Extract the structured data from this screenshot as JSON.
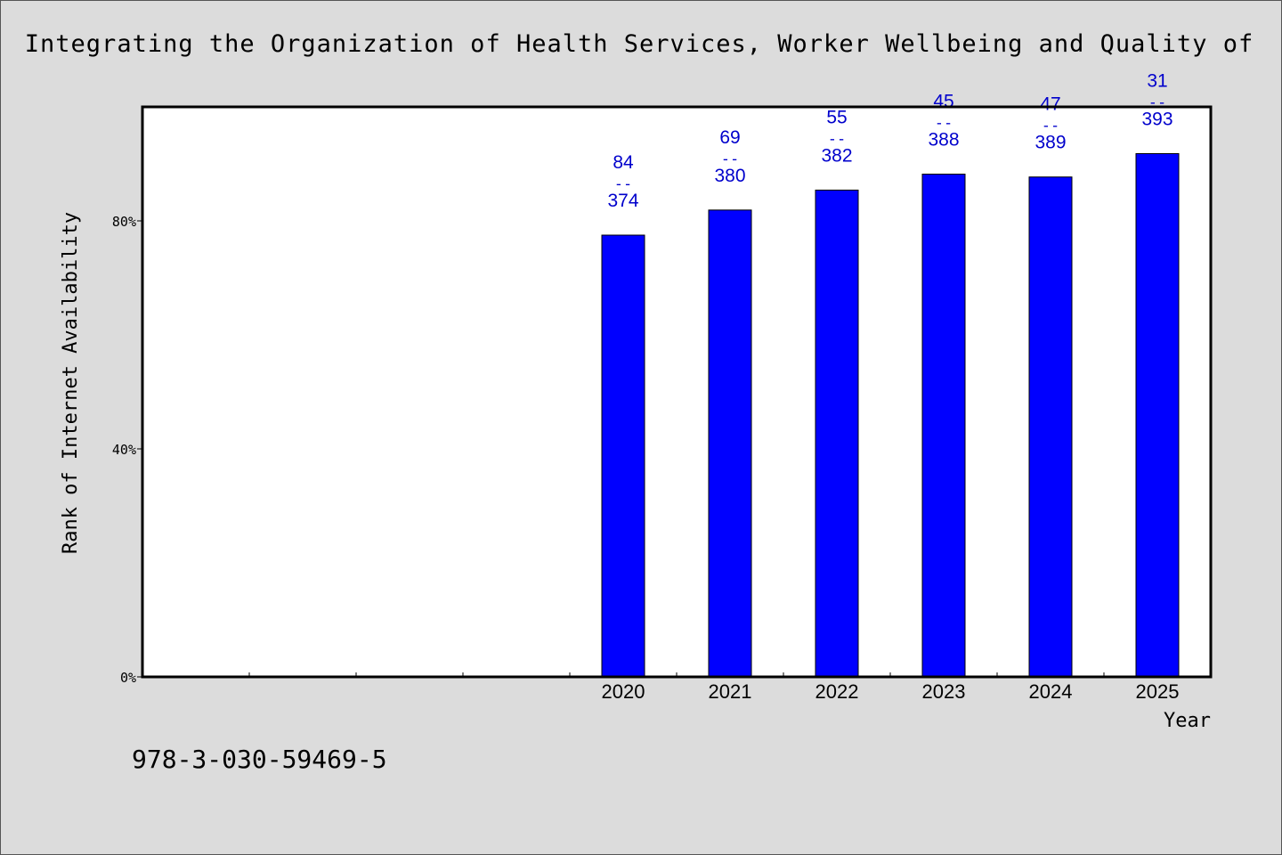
{
  "title": "Integrating the Organization of Health Services, Worker Wellbeing and Quality of",
  "footer_text": "978-3-030-59469-5",
  "colors": {
    "background": "#dcdcdc",
    "bar_fill": "#0000ff",
    "data_label": "#0000cc"
  },
  "chart_data": {
    "type": "bar",
    "xlabel": "Year",
    "ylabel": "Rank of Internet Availability",
    "ylim": [
      0,
      100
    ],
    "yticks": [
      0,
      40,
      80
    ],
    "ytick_labels": [
      "0%",
      "40%",
      "80%"
    ],
    "empty_slots_before": 4,
    "categories": [
      "2020",
      "2021",
      "2022",
      "2023",
      "2024",
      "2025"
    ],
    "values": [
      77.5,
      81.9,
      85.4,
      88.2,
      87.7,
      91.8
    ],
    "data_labels": [
      {
        "top": "84",
        "sep": "--",
        "bottom": "374"
      },
      {
        "top": "69",
        "sep": "--",
        "bottom": "380"
      },
      {
        "top": "55",
        "sep": "--",
        "bottom": "382"
      },
      {
        "top": "45",
        "sep": "--",
        "bottom": "388"
      },
      {
        "top": "47",
        "sep": "--",
        "bottom": "389"
      },
      {
        "top": "31",
        "sep": "--",
        "bottom": "393"
      }
    ],
    "grid": false,
    "legend": "none"
  }
}
